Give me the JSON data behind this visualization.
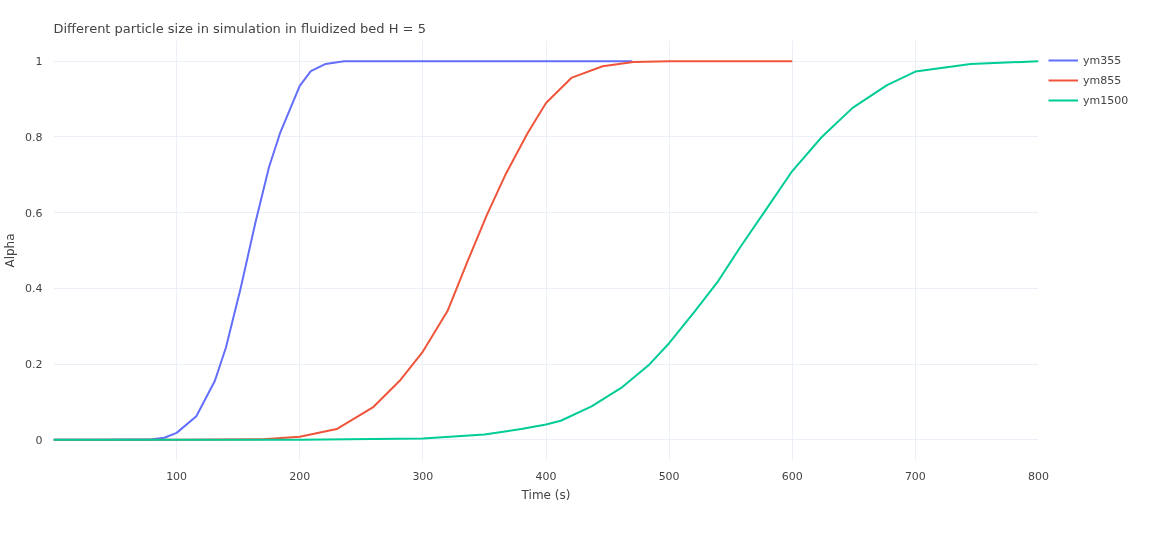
{
  "chart_data": {
    "type": "line",
    "title": "Different particle size in simulation in fluidized bed H = 5",
    "xlabel": "Time (s)",
    "ylabel": "Alpha",
    "xlim": [
      0,
      800
    ],
    "ylim": [
      -0.055,
      1.055
    ],
    "xticks": [
      100,
      200,
      300,
      400,
      500,
      600,
      700,
      800
    ],
    "yticks": [
      0,
      0.2,
      0.4,
      0.6,
      0.8,
      1
    ],
    "grid": true,
    "legend": "top right",
    "marker": "none",
    "line_style": "solid",
    "series": [
      {
        "name": "ym355",
        "color": "#636efa",
        "x": [
          0,
          40,
          80,
          90,
          100,
          116,
          131,
          140,
          152,
          164,
          175,
          184,
          200,
          209,
          221,
          236,
          300,
          400,
          470
        ],
        "values": [
          0,
          0,
          0.001,
          0.005,
          0.018,
          0.062,
          0.155,
          0.243,
          0.4,
          0.574,
          0.72,
          0.81,
          0.935,
          0.974,
          0.993,
          1,
          1,
          1,
          1
        ]
      },
      {
        "name": "ym855",
        "color": "#ef553b",
        "x": [
          0,
          100,
          170,
          200,
          230,
          260,
          281,
          300,
          320,
          337,
          352,
          367,
          385,
          400,
          421,
          446,
          471,
          500,
          600
        ],
        "values": [
          0,
          0,
          0.001,
          0.008,
          0.028,
          0.087,
          0.155,
          0.233,
          0.34,
          0.477,
          0.594,
          0.7,
          0.81,
          0.89,
          0.957,
          0.987,
          0.998,
          1,
          1
        ]
      },
      {
        "name": "ym1500",
        "color": "#00cc96",
        "x": [
          0,
          200,
          300,
          350,
          380,
          400,
          412,
          437,
          462,
          484,
          500,
          521,
          540,
          558,
          577,
          600,
          624,
          649,
          677,
          700,
          745,
          800
        ],
        "values": [
          0,
          0,
          0.003,
          0.014,
          0.028,
          0.04,
          0.05,
          0.088,
          0.139,
          0.199,
          0.255,
          0.34,
          0.42,
          0.51,
          0.6,
          0.71,
          0.8,
          0.877,
          0.937,
          0.973,
          0.993,
          1
        ]
      }
    ]
  }
}
